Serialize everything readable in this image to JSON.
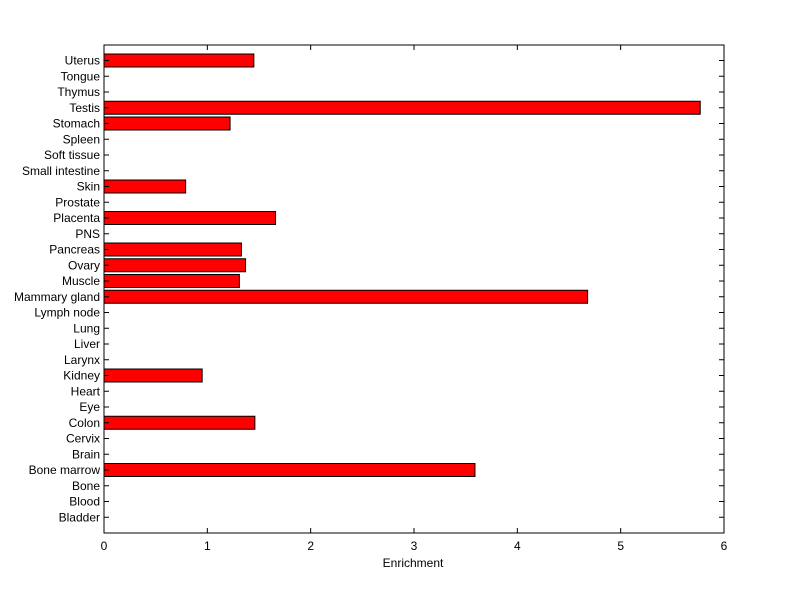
{
  "chart_data": {
    "type": "bar",
    "orientation": "horizontal",
    "categories": [
      "Uterus",
      "Tongue",
      "Thymus",
      "Testis",
      "Stomach",
      "Spleen",
      "Soft tissue",
      "Small intestine",
      "Skin",
      "Prostate",
      "Placenta",
      "PNS",
      "Pancreas",
      "Ovary",
      "Muscle",
      "Mammary gland",
      "Lymph node",
      "Lung",
      "Liver",
      "Larynx",
      "Kidney",
      "Heart",
      "Eye",
      "Colon",
      "Cervix",
      "Brain",
      "Bone marrow",
      "Bone",
      "Blood",
      "Bladder"
    ],
    "values": [
      1.45,
      0,
      0,
      5.77,
      1.22,
      0,
      0,
      0,
      0.79,
      0,
      1.66,
      0,
      1.33,
      1.37,
      1.31,
      4.68,
      0,
      0,
      0,
      0,
      0.95,
      0,
      0,
      1.46,
      0,
      0,
      3.59,
      0,
      0,
      0
    ],
    "xlabel": "Enrichment",
    "ylabel": "",
    "xlim": [
      0,
      6
    ],
    "xticks": [
      "0",
      "1",
      "2",
      "3",
      "4",
      "5",
      "6"
    ],
    "grid": false,
    "bar_color": "#ff0000",
    "edge_color": "#000000"
  }
}
